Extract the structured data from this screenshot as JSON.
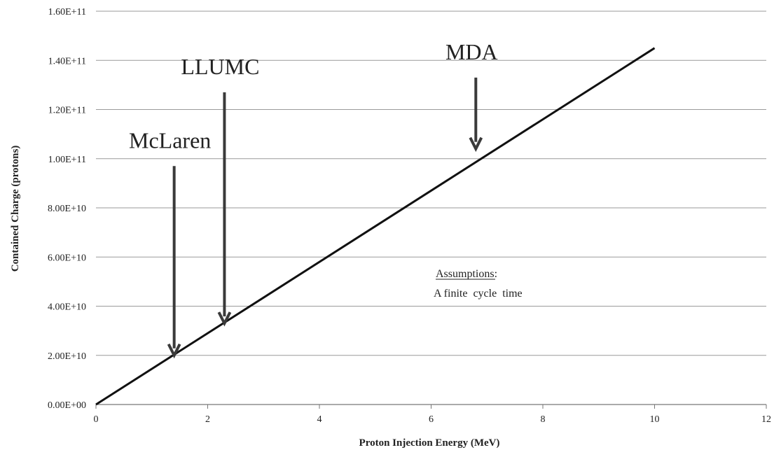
{
  "chart_data": {
    "type": "line",
    "xlabel": "Proton Injection Energy (MeV)",
    "ylabel": "Contained Charge (protons)",
    "xlim": [
      0,
      12
    ],
    "ylim": [
      0,
      160000000000
    ],
    "x_ticks": [
      0,
      2,
      4,
      6,
      8,
      10,
      12
    ],
    "x_tick_labels": [
      "0",
      "2",
      "4",
      "6",
      "8",
      "10",
      "12"
    ],
    "y_ticks": [
      0,
      20000000000,
      40000000000,
      60000000000,
      80000000000,
      100000000000,
      120000000000,
      140000000000,
      160000000000
    ],
    "y_tick_labels": [
      "0.00E+00",
      "2.00E+10",
      "4.00E+10",
      "6.00E+10",
      "8.00E+10",
      "1.00E+11",
      "1.20E+11",
      "1.40E+11",
      "1.60E+11"
    ],
    "grid": "horizontal",
    "series": [
      {
        "x": [
          0,
          10
        ],
        "y": [
          0,
          145000000000
        ],
        "color": "#111111"
      }
    ],
    "annotations": [
      {
        "text": "McLaren",
        "x": 1.4,
        "arrow_from_y": 97000000000,
        "arrow_to_y": 20000000000
      },
      {
        "text": "LLUMC",
        "x": 2.3,
        "arrow_from_y": 127000000000,
        "arrow_to_y": 33000000000
      },
      {
        "text": "MDA",
        "x": 6.8,
        "arrow_from_y": 133000000000,
        "arrow_to_y": 104000000000
      }
    ],
    "note": {
      "heading": "Assumptions:",
      "lines": [
        "A finite  cycle  time"
      ]
    }
  }
}
